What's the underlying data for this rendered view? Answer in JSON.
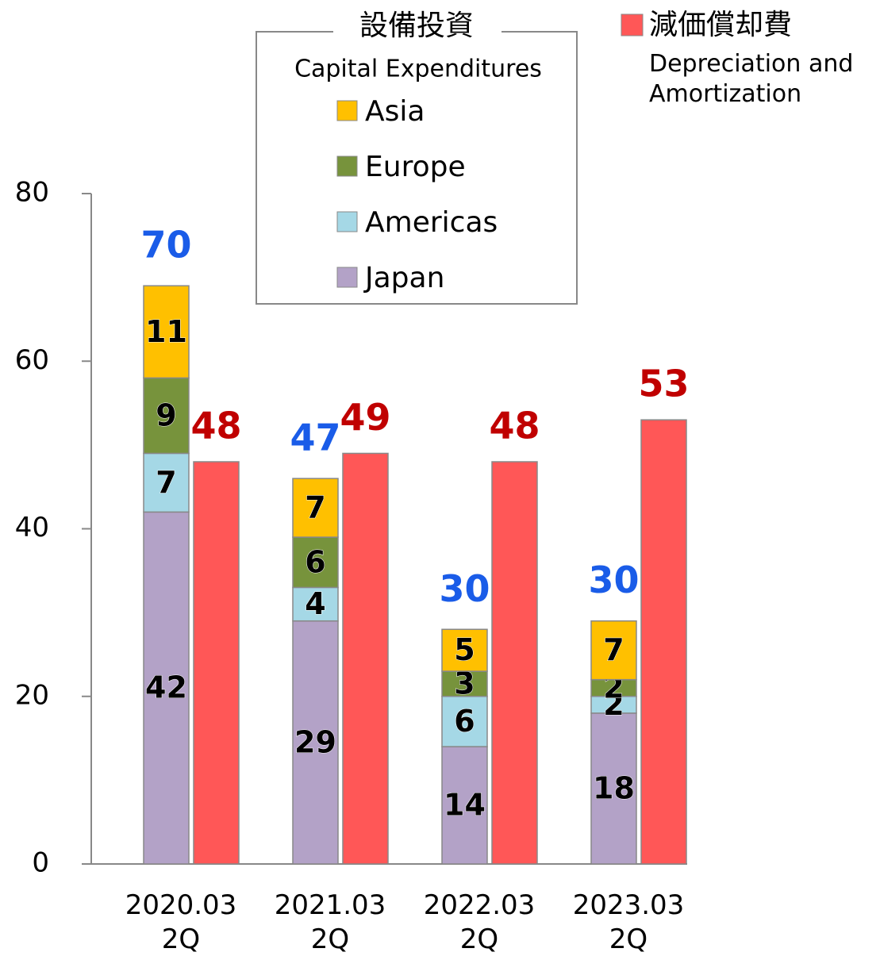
{
  "chart_data": {
    "type": "stacked_bar_with_bar",
    "categories": [
      "2020.03\n2Q",
      "2021.03\n2Q",
      "2022.03\n2Q",
      "2023.03\n2Q"
    ],
    "ylim": [
      0,
      80
    ],
    "yticks": [
      0,
      20,
      40,
      60,
      80
    ],
    "group_title": "設備投資",
    "group_subtitle": "Capital Expenditures",
    "series": [
      {
        "name": "Japan",
        "color": "#b3a2c7",
        "values": [
          42,
          29,
          14,
          18
        ]
      },
      {
        "name": "Americas",
        "color": "#a5d8e6",
        "values": [
          7,
          4,
          6,
          2
        ]
      },
      {
        "name": "Europe",
        "color": "#77933c",
        "values": [
          9,
          6,
          3,
          2
        ]
      },
      {
        "name": "Asia",
        "color": "#ffc000",
        "values": [
          11,
          7,
          5,
          7
        ]
      }
    ],
    "totals": [
      70,
      47,
      30,
      30
    ],
    "totals_color": "#1a5ce8",
    "bar_series": {
      "name": "減価償却費",
      "subtitle": "Depreciation and\nAmortization",
      "color": "#ff5757",
      "label_color": "#c00000",
      "values": [
        48,
        49,
        48,
        53
      ]
    }
  }
}
